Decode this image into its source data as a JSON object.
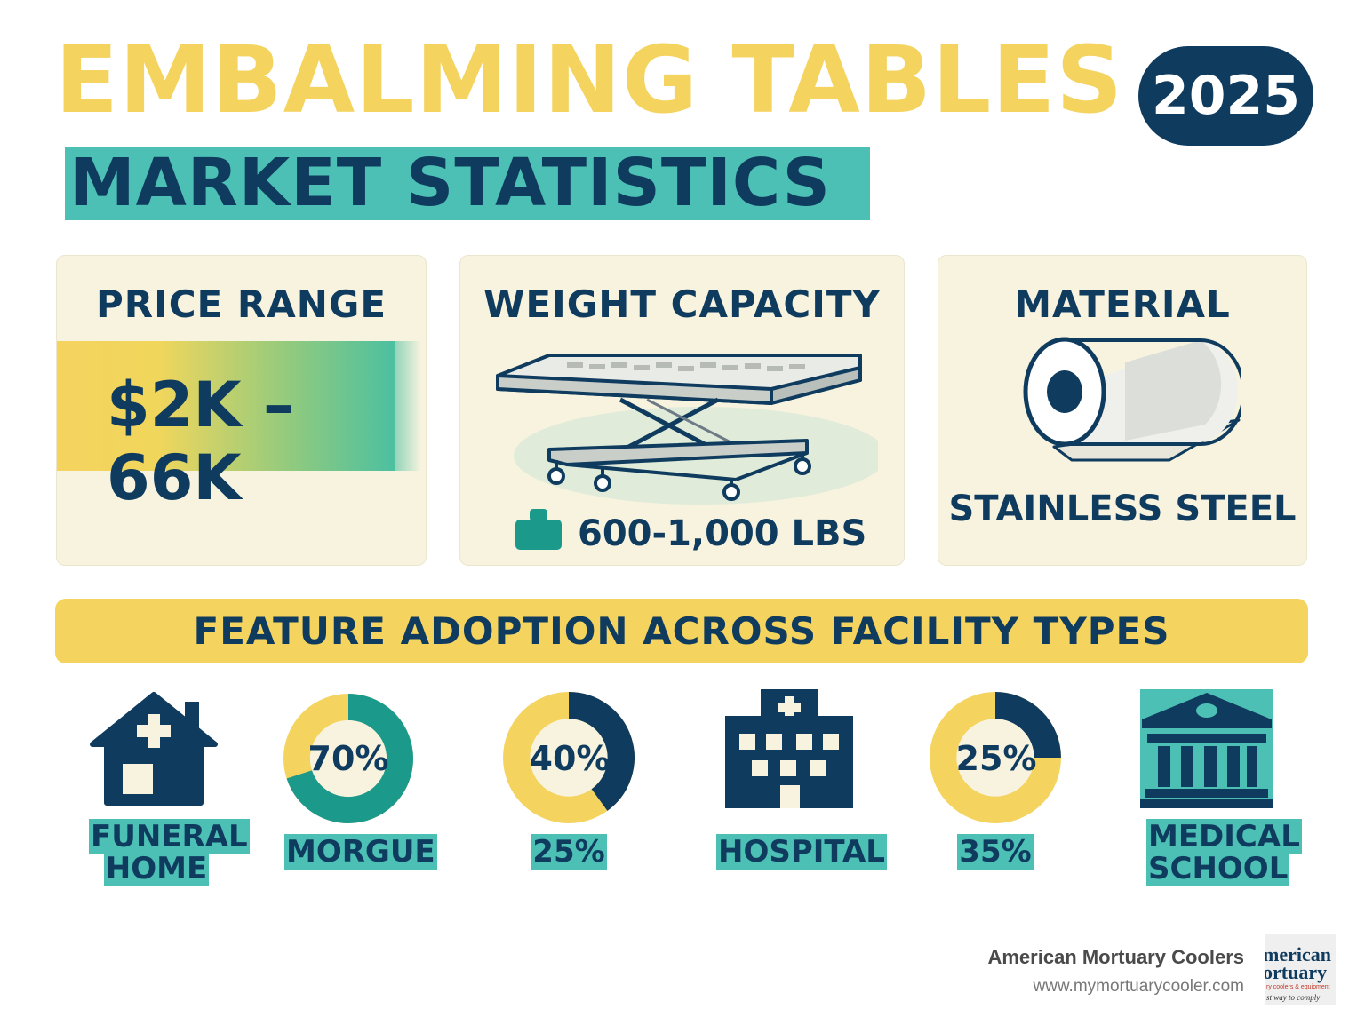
{
  "header": {
    "title": "EMBALMING TABLES",
    "year": "2025",
    "subtitle": "MARKET STATISTICS"
  },
  "cards": {
    "price": {
      "title": "PRICE RANGE",
      "value": "$2K – 66K"
    },
    "weight": {
      "title": "WEIGHT CAPACITY",
      "value": "600-1,000 LBS",
      "icon": "weight-icon"
    },
    "material": {
      "title": "MATERIAL",
      "value": "STAINLESS STEEL",
      "icon": "steel-roll-icon"
    }
  },
  "adoption": {
    "banner": "FEATURE ADOPTION ACROSS FACILITY TYPES",
    "facilities": {
      "funeral_home": {
        "line1": "FUNERAL",
        "line2": "HOME",
        "icon": "house-icon"
      },
      "morgue": {
        "label": "MORGUE"
      },
      "hospital": {
        "label": "HOSPITAL",
        "icon": "hospital-icon"
      },
      "medical_school": {
        "line1": "MEDICAL",
        "line2": "SCHOOL",
        "icon": "school-building-icon"
      }
    },
    "donuts": [
      {
        "percent_label": "70%",
        "fraction": 0.7,
        "caption": "MORGUE"
      },
      {
        "percent_label": "40%",
        "fraction": 0.4,
        "caption": "25%"
      },
      {
        "percent_label": "25%",
        "fraction": 0.25,
        "caption": "35%"
      }
    ]
  },
  "footer": {
    "brand": "American Mortuary Coolers",
    "url": "www.mymortuarycooler.com",
    "logo": {
      "line1": "merican",
      "line2": "ortuary",
      "line3": "ry coolers & equipment",
      "line4": "st way to comply"
    }
  },
  "colors": {
    "navy": "#0f3b5f",
    "yellow": "#f4d35e",
    "teal": "#4cc0b4",
    "teal_dark": "#1b9a8c",
    "cream": "#f7f3df"
  }
}
